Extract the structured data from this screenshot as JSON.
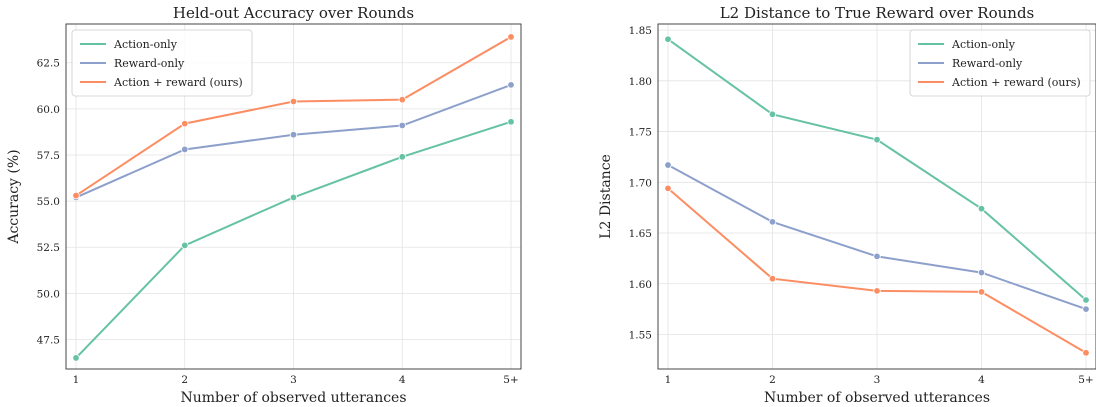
{
  "chart_data": [
    {
      "type": "line",
      "title": "Held-out Accuracy over Rounds",
      "xlabel": "Number of observed utterances",
      "ylabel": "Accuracy (%)",
      "categories": [
        "1",
        "2",
        "3",
        "4",
        "5+"
      ],
      "ylim": [
        45.9,
        64.6
      ],
      "yticks": [
        "47.5",
        "50.0",
        "52.5",
        "55.0",
        "57.5",
        "60.0",
        "62.5"
      ],
      "grid": true,
      "legend_position": "top-left",
      "series": [
        {
          "name": "Action-only",
          "color": "#66c2a5",
          "values": [
            46.5,
            52.6,
            55.2,
            57.4,
            59.3
          ]
        },
        {
          "name": "Reward-only",
          "color": "#8da0cb",
          "values": [
            55.2,
            57.8,
            58.6,
            59.1,
            61.3
          ]
        },
        {
          "name": "Action + reward (ours)",
          "color": "#fc8d62",
          "values": [
            55.3,
            59.2,
            60.4,
            60.5,
            63.9
          ]
        }
      ]
    },
    {
      "type": "line",
      "title": "L2 Distance to True Reward over Rounds",
      "xlabel": "Number of observed utterances",
      "ylabel": "L2 Distance",
      "categories": [
        "1",
        "2",
        "3",
        "4",
        "5+"
      ],
      "ylim": [
        1.516,
        1.856
      ],
      "yticks": [
        "1.55",
        "1.60",
        "1.65",
        "1.70",
        "1.75",
        "1.80",
        "1.85"
      ],
      "grid": true,
      "legend_position": "top-right",
      "series": [
        {
          "name": "Action-only",
          "color": "#66c2a5",
          "values": [
            1.841,
            1.767,
            1.742,
            1.674,
            1.584
          ]
        },
        {
          "name": "Reward-only",
          "color": "#8da0cb",
          "values": [
            1.717,
            1.661,
            1.627,
            1.611,
            1.575
          ]
        },
        {
          "name": "Action + reward (ours)",
          "color": "#fc8d62",
          "values": [
            1.694,
            1.605,
            1.593,
            1.592,
            1.532
          ]
        }
      ]
    }
  ]
}
